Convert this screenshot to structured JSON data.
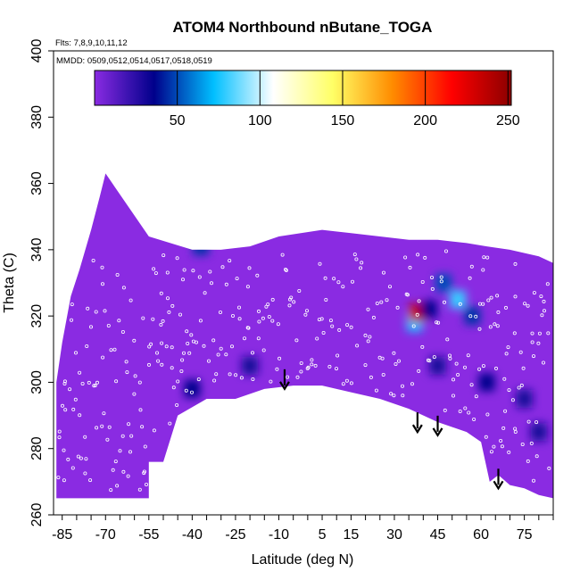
{
  "chart_data": {
    "type": "heatmap",
    "title": "ATOM4 Northbound nButane_TOGA",
    "annotations": [
      "Flts: 7,8,9,10,11,12",
      "MMDD: 0509,0512,0514,0517,0518,0519"
    ],
    "xlabel": "Latitude (deg N)",
    "ylabel": "Theta (C)",
    "xlim": [
      -88,
      85
    ],
    "ylim": [
      260,
      400
    ],
    "x_ticks": [
      -85,
      -70,
      -55,
      -40,
      -25,
      -10,
      5,
      15,
      30,
      45,
      60,
      75
    ],
    "x_tick_labels": [
      "-85",
      "-70",
      "-55",
      "-40",
      "-25",
      "-10",
      "5",
      "15",
      "30",
      "45",
      "60",
      "75"
    ],
    "y_ticks": [
      260,
      280,
      300,
      320,
      340,
      360,
      380,
      400
    ],
    "y_tick_labels": [
      "260",
      "280",
      "300",
      "320",
      "340",
      "360",
      "380",
      "400"
    ],
    "colorbar": {
      "range": [
        0,
        252
      ],
      "ticks": [
        50,
        100,
        150,
        200,
        250
      ],
      "tick_labels": [
        "50",
        "100",
        "150",
        "200",
        "250"
      ],
      "colors": [
        "#8a2be2",
        "#00008b",
        "#00bfff",
        "#ffffff",
        "#ffff66",
        "#ff8c00",
        "#ff0000",
        "#8b0000"
      ]
    },
    "upper_boundary": [
      [
        -87,
        300
      ],
      [
        -85,
        312
      ],
      [
        -82,
        326
      ],
      [
        -79,
        334
      ],
      [
        -75,
        346
      ],
      [
        -72,
        356
      ],
      [
        -70,
        363
      ],
      [
        -55,
        344
      ],
      [
        -40,
        340
      ],
      [
        -30,
        340
      ],
      [
        -20,
        341
      ],
      [
        -10,
        344
      ],
      [
        5,
        346
      ],
      [
        15,
        345
      ],
      [
        25,
        344
      ],
      [
        35,
        343
      ],
      [
        45,
        343
      ],
      [
        55,
        342
      ],
      [
        62,
        341
      ],
      [
        70,
        340
      ],
      [
        80,
        338
      ],
      [
        85,
        336
      ]
    ],
    "lower_boundary": [
      [
        -87,
        265
      ],
      [
        -55,
        265
      ],
      [
        -55,
        276
      ],
      [
        -50,
        276
      ],
      [
        -45,
        290
      ],
      [
        -35,
        295
      ],
      [
        -25,
        295
      ],
      [
        -15,
        298
      ],
      [
        -5,
        299
      ],
      [
        5,
        299
      ],
      [
        15,
        297
      ],
      [
        25,
        295
      ],
      [
        35,
        292
      ],
      [
        45,
        288
      ],
      [
        55,
        285
      ],
      [
        60,
        282
      ],
      [
        63,
        270
      ],
      [
        66,
        272
      ],
      [
        70,
        269
      ],
      [
        75,
        268
      ],
      [
        80,
        266
      ],
      [
        85,
        265
      ]
    ],
    "hotspots": [
      {
        "lat": -42,
        "theta": 350,
        "value": 40
      },
      {
        "lat": -37,
        "theta": 341,
        "value": 45
      },
      {
        "lat": 47,
        "theta": 330,
        "value": 50
      },
      {
        "lat": 52,
        "theta": 325,
        "value": 80
      },
      {
        "lat": 57,
        "theta": 320,
        "value": 45
      },
      {
        "lat": 37,
        "theta": 318,
        "value": 75
      },
      {
        "lat": 38,
        "theta": 321,
        "value": 235
      },
      {
        "lat": 42,
        "theta": 322,
        "value": 35
      },
      {
        "lat": -40,
        "theta": 298,
        "value": 35
      },
      {
        "lat": -20,
        "theta": 305,
        "value": 30
      },
      {
        "lat": 62,
        "theta": 300,
        "value": 35
      },
      {
        "lat": 75,
        "theta": 295,
        "value": 30
      },
      {
        "lat": 80,
        "theta": 285,
        "value": 30
      },
      {
        "lat": 45,
        "theta": 305,
        "value": 30
      }
    ],
    "arrows": [
      {
        "lat": -8,
        "theta": 298
      },
      {
        "lat": 38,
        "theta": 285
      },
      {
        "lat": 45,
        "theta": 284
      },
      {
        "lat": 66,
        "theta": 268
      }
    ]
  }
}
